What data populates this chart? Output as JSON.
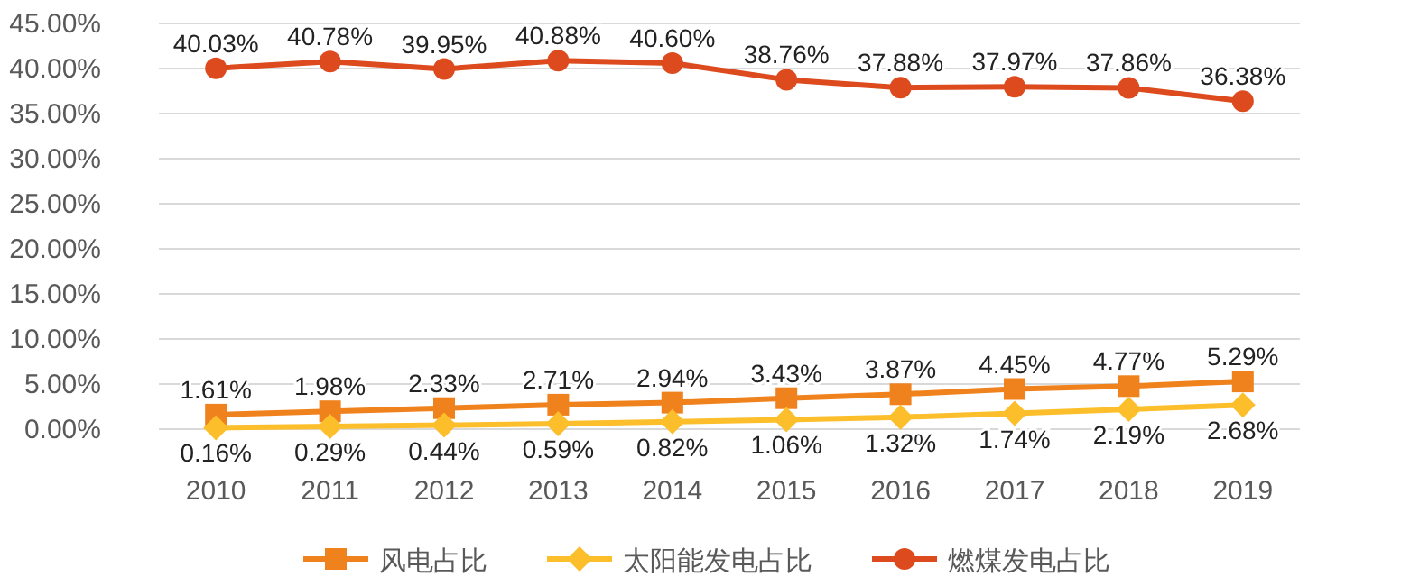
{
  "chart_data": {
    "type": "line",
    "categories": [
      "2010",
      "2011",
      "2012",
      "2013",
      "2014",
      "2015",
      "2016",
      "2017",
      "2018",
      "2019"
    ],
    "series": [
      {
        "name": "风电占比",
        "color": "#f0821e",
        "marker": "square",
        "values": [
          1.61,
          1.98,
          2.33,
          2.71,
          2.94,
          3.43,
          3.87,
          4.45,
          4.77,
          5.29
        ],
        "value_labels": [
          "1.61%",
          "1.98%",
          "2.33%",
          "2.71%",
          "2.94%",
          "3.43%",
          "3.87%",
          "4.45%",
          "4.77%",
          "5.29%"
        ]
      },
      {
        "name": "太阳能发电占比",
        "color": "#fcbf2b",
        "marker": "diamond",
        "values": [
          0.16,
          0.29,
          0.44,
          0.59,
          0.82,
          1.06,
          1.32,
          1.74,
          2.19,
          2.68
        ],
        "value_labels": [
          "0.16%",
          "0.29%",
          "0.44%",
          "0.59%",
          "0.82%",
          "1.06%",
          "1.32%",
          "1.74%",
          "2.19%",
          "2.68%"
        ]
      },
      {
        "name": "燃煤发电占比",
        "color": "#dc4a1e",
        "marker": "circle",
        "values": [
          40.03,
          40.78,
          39.95,
          40.88,
          40.6,
          38.76,
          37.88,
          37.97,
          37.86,
          36.38
        ],
        "value_labels": [
          "40.03%",
          "40.78%",
          "39.95%",
          "40.88%",
          "40.60%",
          "38.76%",
          "37.88%",
          "37.97%",
          "37.86%",
          "36.38%"
        ]
      }
    ],
    "ylim": [
      0,
      45
    ],
    "yticks": [
      {
        "value": 0,
        "label": "0.00%"
      },
      {
        "value": 5,
        "label": "5.00%"
      },
      {
        "value": 10,
        "label": "10.00%"
      },
      {
        "value": 15,
        "label": "15.00%"
      },
      {
        "value": 20,
        "label": "20.00%"
      },
      {
        "value": 25,
        "label": "25.00%"
      },
      {
        "value": 30,
        "label": "30.00%"
      },
      {
        "value": 35,
        "label": "35.00%"
      },
      {
        "value": 40,
        "label": "40.00%"
      },
      {
        "value": 45,
        "label": "45.00%"
      }
    ],
    "grid": "y",
    "legend": "bottom"
  }
}
